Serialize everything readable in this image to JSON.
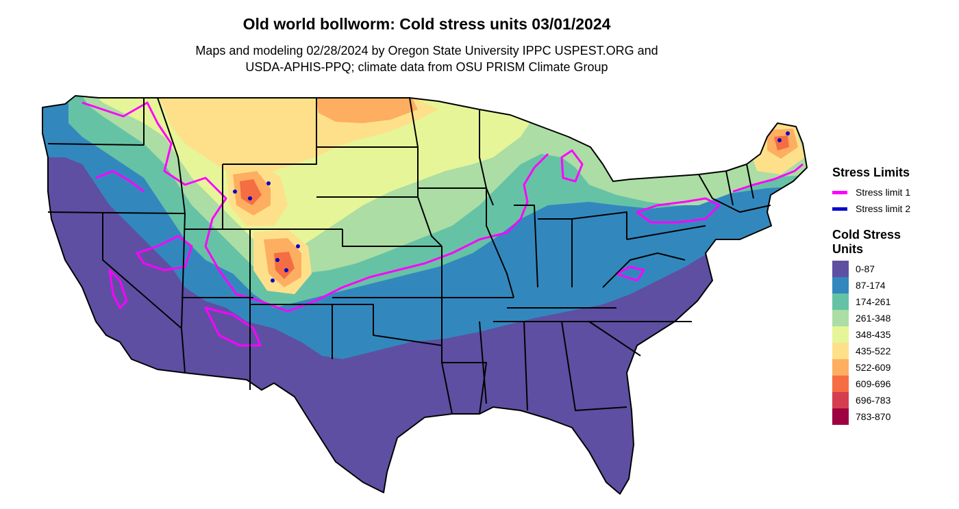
{
  "title": "Old world bollworm: Cold stress units 03/01/2024",
  "subtitle": [
    "Maps and modeling 02/28/2024 by Oregon State University IPPC USPEST.ORG and",
    "USDA-APHIS-PPQ; climate data from OSU PRISM Climate Group"
  ],
  "legend": {
    "lines_title": "Stress Limits",
    "lines": [
      {
        "label": "Stress limit 1",
        "color": "#ff00ff"
      },
      {
        "label": "Stress limit 2",
        "color": "#0000cc"
      }
    ],
    "fill_title": "Cold Stress Units",
    "fills": [
      {
        "label": "0-87",
        "color": "#5e4fa2"
      },
      {
        "label": "87-174",
        "color": "#3288bd"
      },
      {
        "label": "174-261",
        "color": "#66c2a5"
      },
      {
        "label": "261-348",
        "color": "#abdda4"
      },
      {
        "label": "348-435",
        "color": "#e6f598"
      },
      {
        "label": "435-522",
        "color": "#fee08b"
      },
      {
        "label": "522-609",
        "color": "#fdae61"
      },
      {
        "label": "609-696",
        "color": "#f46d43"
      },
      {
        "label": "696-783",
        "color": "#d53e4f"
      },
      {
        "label": "783-870",
        "color": "#9e0142"
      }
    ]
  }
}
